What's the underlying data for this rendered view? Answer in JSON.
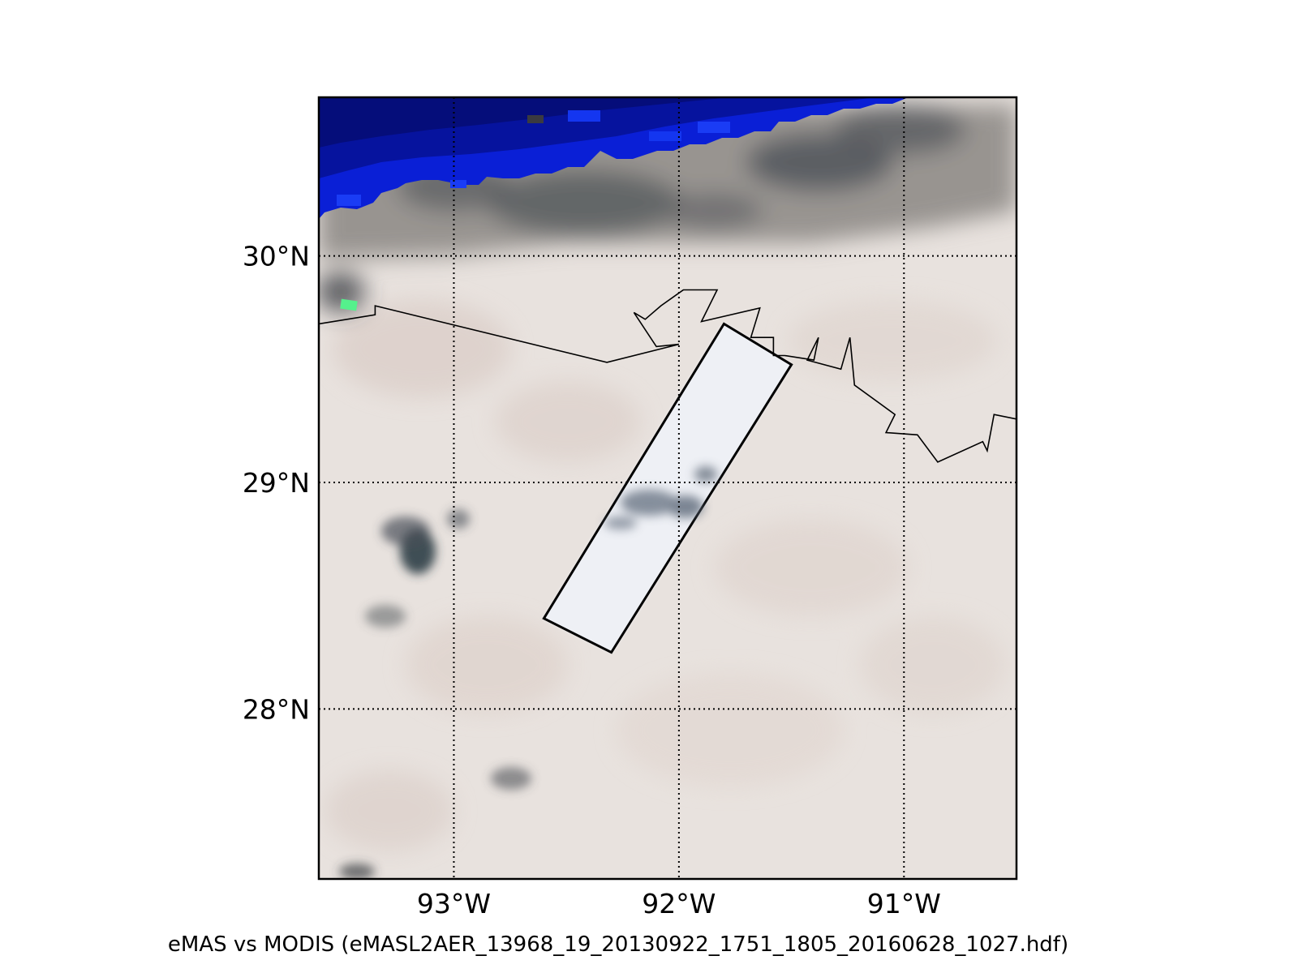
{
  "title": "eMAS vs MODIS (eMASL2AER_13968_19_20130922_1751_1805_20160628_1027.hdf)",
  "map": {
    "lon_range": [
      -93.6,
      -90.5
    ],
    "lat_range": [
      27.25,
      30.7
    ],
    "lat_ticks": [
      {
        "value": 30,
        "label": "30°N"
      },
      {
        "value": 29,
        "label": "29°N"
      },
      {
        "value": 28,
        "label": "28°N"
      }
    ],
    "lon_ticks": [
      {
        "value": -93,
        "label": "93°W"
      },
      {
        "value": -92,
        "label": "92°W"
      },
      {
        "value": -91,
        "label": "91°W"
      }
    ],
    "gridlines": "dotted",
    "colors": {
      "background_cloud": "#e8e2de",
      "land_cloud_dark": "#4a4e54",
      "ocean_blue": "#0a1fd6",
      "ocean_navy": "#051090",
      "swath_fill": "#eef0f5",
      "coastline": "#000000",
      "green_pixel": "#55f08c"
    },
    "swath_corners": [
      {
        "lon": -91.8,
        "lat": 29.7
      },
      {
        "lon": -91.5,
        "lat": 29.52
      },
      {
        "lon": -92.3,
        "lat": 28.25
      },
      {
        "lon": -92.6,
        "lat": 28.4
      }
    ],
    "coastline": [
      {
        "lon": -93.6,
        "lat": 29.7
      },
      {
        "lon": -93.35,
        "lat": 29.74
      },
      {
        "lon": -93.35,
        "lat": 29.78
      },
      {
        "lon": -92.32,
        "lat": 29.53
      },
      {
        "lon": -92.0,
        "lat": 29.61
      },
      {
        "lon": -92.1,
        "lat": 29.6
      },
      {
        "lon": -92.2,
        "lat": 29.75
      },
      {
        "lon": -92.15,
        "lat": 29.72
      },
      {
        "lon": -92.08,
        "lat": 29.78
      },
      {
        "lon": -91.98,
        "lat": 29.85
      },
      {
        "lon": -91.83,
        "lat": 29.85
      },
      {
        "lon": -91.9,
        "lat": 29.71
      },
      {
        "lon": -91.64,
        "lat": 29.77
      },
      {
        "lon": -91.68,
        "lat": 29.64
      },
      {
        "lon": -91.58,
        "lat": 29.64
      },
      {
        "lon": -91.58,
        "lat": 29.56
      },
      {
        "lon": -91.53,
        "lat": 29.56
      },
      {
        "lon": -91.4,
        "lat": 29.54
      },
      {
        "lon": -91.38,
        "lat": 29.64
      },
      {
        "lon": -91.43,
        "lat": 29.54
      },
      {
        "lon": -91.28,
        "lat": 29.5
      },
      {
        "lon": -91.24,
        "lat": 29.64
      },
      {
        "lon": -91.22,
        "lat": 29.43
      },
      {
        "lon": -91.04,
        "lat": 29.3
      },
      {
        "lon": -91.08,
        "lat": 29.22
      },
      {
        "lon": -90.94,
        "lat": 29.21
      },
      {
        "lon": -90.85,
        "lat": 29.09
      },
      {
        "lon": -90.65,
        "lat": 29.18
      },
      {
        "lon": -90.63,
        "lat": 29.14
      },
      {
        "lon": -90.6,
        "lat": 29.3
      },
      {
        "lon": -90.5,
        "lat": 29.28
      }
    ]
  }
}
